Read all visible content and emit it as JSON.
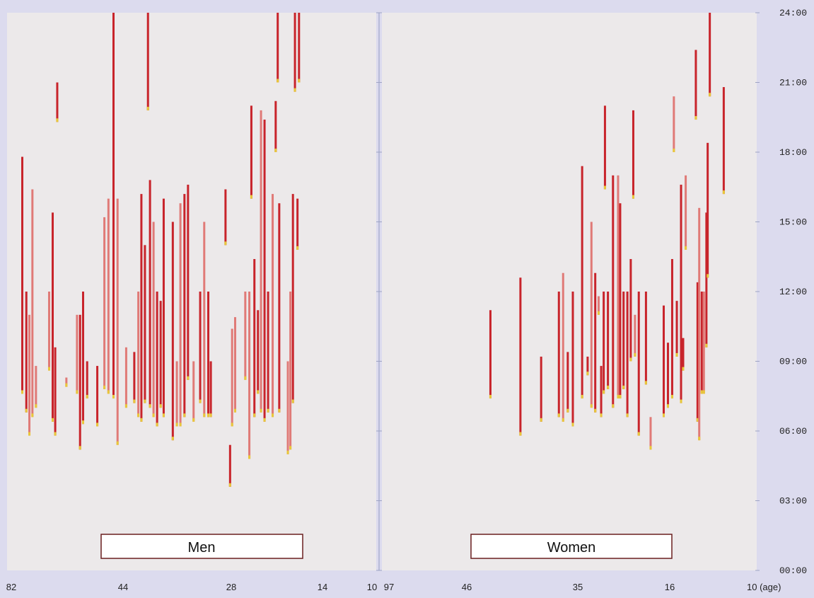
{
  "chart_data": [
    {
      "type": "bar",
      "panel": "Men",
      "label": "Men",
      "x_ticks": [
        "82",
        "44",
        "28",
        "14",
        "10"
      ],
      "x_axis_ages_reversed": true,
      "ylim": [
        "00:00",
        "24:00"
      ],
      "y_ticks": [
        "00:00",
        "03:00",
        "06:00",
        "09:00",
        "12:00",
        "15:00",
        "18:00",
        "21:00",
        "24:00"
      ],
      "grid": false,
      "series": [
        {
          "age": 79.0,
          "start": 7.6,
          "end": 17.8,
          "tone": "dark"
        },
        {
          "age": 78.2,
          "start": 6.8,
          "end": 12.0,
          "tone": "dark"
        },
        {
          "age": 77.6,
          "start": 5.8,
          "end": 11.0,
          "tone": "light"
        },
        {
          "age": 77.0,
          "start": 6.6,
          "end": 16.4,
          "tone": "light"
        },
        {
          "age": 76.3,
          "start": 7.0,
          "end": 8.8,
          "tone": "light"
        },
        {
          "age": 73.7,
          "start": 8.6,
          "end": 12.0,
          "tone": "light"
        },
        {
          "age": 73.0,
          "start": 6.4,
          "end": 15.4,
          "tone": "dark"
        },
        {
          "age": 72.5,
          "start": 5.8,
          "end": 9.6,
          "tone": "dark"
        },
        {
          "age": 72.1,
          "start": 19.3,
          "end": 21.0,
          "tone": "dark"
        },
        {
          "age": 70.3,
          "start": 7.9,
          "end": 8.3,
          "tone": "light"
        },
        {
          "age": 68.2,
          "start": 7.6,
          "end": 11.0,
          "tone": "light"
        },
        {
          "age": 67.6,
          "start": 5.2,
          "end": 11.0,
          "tone": "dark"
        },
        {
          "age": 67.0,
          "start": 6.3,
          "end": 12.0,
          "tone": "dark"
        },
        {
          "age": 66.2,
          "start": 7.4,
          "end": 9.0,
          "tone": "dark"
        },
        {
          "age": 64.2,
          "start": 6.2,
          "end": 8.8,
          "tone": "dark"
        },
        {
          "age": 62.8,
          "start": 7.8,
          "end": 15.2,
          "tone": "light"
        },
        {
          "age": 62.0,
          "start": 7.6,
          "end": 16.0,
          "tone": "light"
        },
        {
          "age": 61.0,
          "start": 7.4,
          "end": 24.0,
          "tone": "dark"
        },
        {
          "age": 60.2,
          "start": 5.4,
          "end": 16.0,
          "tone": "light"
        },
        {
          "age": 58.5,
          "start": 7.0,
          "end": 9.6,
          "tone": "light"
        },
        {
          "age": 56.9,
          "start": 7.2,
          "end": 9.4,
          "tone": "dark"
        },
        {
          "age": 56.1,
          "start": 6.6,
          "end": 12.0,
          "tone": "light"
        },
        {
          "age": 55.5,
          "start": 6.4,
          "end": 16.2,
          "tone": "dark"
        },
        {
          "age": 54.8,
          "start": 7.2,
          "end": 14.0,
          "tone": "dark"
        },
        {
          "age": 54.2,
          "start": 19.8,
          "end": 24.0,
          "tone": "dark"
        },
        {
          "age": 53.8,
          "start": 7.0,
          "end": 16.8,
          "tone": "dark"
        },
        {
          "age": 53.1,
          "start": 6.6,
          "end": 15.0,
          "tone": "light"
        },
        {
          "age": 52.4,
          "start": 6.2,
          "end": 12.0,
          "tone": "dark"
        },
        {
          "age": 51.7,
          "start": 7.0,
          "end": 11.6,
          "tone": "dark"
        },
        {
          "age": 51.1,
          "start": 6.6,
          "end": 16.0,
          "tone": "dark"
        },
        {
          "age": 49.3,
          "start": 5.6,
          "end": 15.0,
          "tone": "dark"
        },
        {
          "age": 48.5,
          "start": 6.2,
          "end": 9.0,
          "tone": "light"
        },
        {
          "age": 47.8,
          "start": 6.2,
          "end": 15.8,
          "tone": "light"
        },
        {
          "age": 47.0,
          "start": 6.6,
          "end": 16.2,
          "tone": "dark"
        },
        {
          "age": 46.3,
          "start": 8.2,
          "end": 16.6,
          "tone": "dark"
        },
        {
          "age": 45.2,
          "start": 6.4,
          "end": 9.0,
          "tone": "light"
        },
        {
          "age": 43.9,
          "start": 7.2,
          "end": 12.0,
          "tone": "dark"
        },
        {
          "age": 43.1,
          "start": 6.6,
          "end": 15.0,
          "tone": "light"
        },
        {
          "age": 42.3,
          "start": 6.6,
          "end": 12.0,
          "tone": "dark"
        },
        {
          "age": 41.8,
          "start": 6.6,
          "end": 9.0,
          "tone": "dark"
        },
        {
          "age": 38.0,
          "start": 3.6,
          "end": 5.4,
          "tone": "dark"
        },
        {
          "age": 37.6,
          "start": 6.2,
          "end": 10.4,
          "tone": "light"
        },
        {
          "age": 37.0,
          "start": 6.8,
          "end": 10.9,
          "tone": "light"
        },
        {
          "age": 38.9,
          "start": 14.0,
          "end": 16.4,
          "tone": "dark"
        },
        {
          "age": 35.0,
          "start": 8.2,
          "end": 12.0,
          "tone": "light"
        },
        {
          "age": 34.2,
          "start": 4.8,
          "end": 12.0,
          "tone": "light"
        },
        {
          "age": 33.8,
          "start": 16.0,
          "end": 20.0,
          "tone": "dark"
        },
        {
          "age": 33.2,
          "start": 6.6,
          "end": 13.4,
          "tone": "dark"
        },
        {
          "age": 32.5,
          "start": 7.6,
          "end": 11.2,
          "tone": "dark"
        },
        {
          "age": 31.9,
          "start": 6.8,
          "end": 19.8,
          "tone": "light"
        },
        {
          "age": 31.2,
          "start": 6.4,
          "end": 19.4,
          "tone": "dark"
        },
        {
          "age": 30.5,
          "start": 6.8,
          "end": 12.0,
          "tone": "dark"
        },
        {
          "age": 29.6,
          "start": 6.6,
          "end": 16.2,
          "tone": "light"
        },
        {
          "age": 29.0,
          "start": 18.0,
          "end": 20.2,
          "tone": "dark"
        },
        {
          "age": 28.6,
          "start": 21.0,
          "end": 24.0,
          "tone": "dark"
        },
        {
          "age": 28.3,
          "start": 6.8,
          "end": 15.8,
          "tone": "dark"
        },
        {
          "age": 26.6,
          "start": 5.0,
          "end": 9.0,
          "tone": "light"
        },
        {
          "age": 26.1,
          "start": 5.2,
          "end": 12.0,
          "tone": "light"
        },
        {
          "age": 25.6,
          "start": 7.2,
          "end": 16.2,
          "tone": "dark"
        },
        {
          "age": 25.2,
          "start": 20.6,
          "end": 24.0,
          "tone": "dark"
        },
        {
          "age": 24.7,
          "start": 13.8,
          "end": 16.0,
          "tone": "dark"
        },
        {
          "age": 24.4,
          "start": 21.0,
          "end": 24.0,
          "tone": "dark"
        }
      ]
    },
    {
      "type": "bar",
      "panel": "Women",
      "label": "Women",
      "x_ticks": [
        "97",
        "46",
        "35",
        "16",
        "10 (age)"
      ],
      "x_axis_ages_reversed": true,
      "ylim": [
        "00:00",
        "24:00"
      ],
      "y_ticks": [
        "00:00",
        "03:00",
        "06:00",
        "09:00",
        "12:00",
        "15:00",
        "18:00",
        "21:00",
        "24:00"
      ],
      "grid": false,
      "series": [
        {
          "age": 73.0,
          "start": 7.4,
          "end": 11.2,
          "tone": "dark"
        },
        {
          "age": 65.9,
          "start": 5.8,
          "end": 12.6,
          "tone": "dark"
        },
        {
          "age": 61.0,
          "start": 6.4,
          "end": 9.2,
          "tone": "dark"
        },
        {
          "age": 56.8,
          "start": 6.6,
          "end": 12.0,
          "tone": "dark"
        },
        {
          "age": 55.8,
          "start": 6.4,
          "end": 12.8,
          "tone": "light"
        },
        {
          "age": 54.7,
          "start": 6.8,
          "end": 9.4,
          "tone": "dark"
        },
        {
          "age": 53.5,
          "start": 6.2,
          "end": 12.0,
          "tone": "dark"
        },
        {
          "age": 51.3,
          "start": 7.4,
          "end": 17.4,
          "tone": "dark"
        },
        {
          "age": 50.0,
          "start": 8.4,
          "end": 9.2,
          "tone": "dark"
        },
        {
          "age": 49.1,
          "start": 7.0,
          "end": 15.0,
          "tone": "light"
        },
        {
          "age": 48.2,
          "start": 6.8,
          "end": 12.8,
          "tone": "dark"
        },
        {
          "age": 47.4,
          "start": 11.0,
          "end": 11.8,
          "tone": "light"
        },
        {
          "age": 46.8,
          "start": 6.6,
          "end": 8.8,
          "tone": "dark"
        },
        {
          "age": 46.2,
          "start": 7.6,
          "end": 12.0,
          "tone": "dark"
        },
        {
          "age": 45.9,
          "start": 16.4,
          "end": 20.0,
          "tone": "dark"
        },
        {
          "age": 45.2,
          "start": 7.8,
          "end": 12.0,
          "tone": "dark"
        },
        {
          "age": 44.0,
          "start": 7.0,
          "end": 17.0,
          "tone": "dark"
        },
        {
          "age": 42.8,
          "start": 7.4,
          "end": 17.0,
          "tone": "light"
        },
        {
          "age": 42.3,
          "start": 7.4,
          "end": 15.8,
          "tone": "dark"
        },
        {
          "age": 41.5,
          "start": 7.8,
          "end": 12.0,
          "tone": "dark"
        },
        {
          "age": 40.6,
          "start": 6.6,
          "end": 12.0,
          "tone": "dark"
        },
        {
          "age": 39.8,
          "start": 9.0,
          "end": 13.4,
          "tone": "dark"
        },
        {
          "age": 39.2,
          "start": 16.0,
          "end": 19.8,
          "tone": "dark"
        },
        {
          "age": 38.8,
          "start": 9.2,
          "end": 11.0,
          "tone": "light"
        },
        {
          "age": 37.9,
          "start": 5.8,
          "end": 12.0,
          "tone": "dark"
        },
        {
          "age": 36.2,
          "start": 8.0,
          "end": 12.0,
          "tone": "dark"
        },
        {
          "age": 35.1,
          "start": 5.2,
          "end": 6.6,
          "tone": "light"
        },
        {
          "age": 32.0,
          "start": 6.6,
          "end": 11.4,
          "tone": "dark"
        },
        {
          "age": 31.0,
          "start": 7.0,
          "end": 9.8,
          "tone": "dark"
        },
        {
          "age": 30.0,
          "start": 7.4,
          "end": 13.4,
          "tone": "dark"
        },
        {
          "age": 29.6,
          "start": 18.0,
          "end": 20.4,
          "tone": "light"
        },
        {
          "age": 28.9,
          "start": 9.2,
          "end": 11.6,
          "tone": "dark"
        },
        {
          "age": 27.9,
          "start": 7.2,
          "end": 16.6,
          "tone": "dark"
        },
        {
          "age": 27.4,
          "start": 8.6,
          "end": 10.0,
          "tone": "dark"
        },
        {
          "age": 26.8,
          "start": 13.8,
          "end": 17.0,
          "tone": "light"
        },
        {
          "age": 24.4,
          "start": 19.4,
          "end": 22.4,
          "tone": "dark"
        },
        {
          "age": 24.0,
          "start": 6.4,
          "end": 12.4,
          "tone": "dark"
        },
        {
          "age": 23.6,
          "start": 5.6,
          "end": 15.6,
          "tone": "light"
        },
        {
          "age": 23.0,
          "start": 7.6,
          "end": 12.0,
          "tone": "dark"
        },
        {
          "age": 22.5,
          "start": 7.6,
          "end": 12.0,
          "tone": "light"
        },
        {
          "age": 21.9,
          "start": 9.6,
          "end": 15.4,
          "tone": "dark"
        },
        {
          "age": 21.6,
          "start": 12.6,
          "end": 18.4,
          "tone": "dark"
        },
        {
          "age": 21.1,
          "start": 20.4,
          "end": 24.0,
          "tone": "dark"
        },
        {
          "age": 17.8,
          "start": 16.2,
          "end": 20.8,
          "tone": "dark"
        }
      ]
    }
  ],
  "colors": {
    "dark_bar": "#c8242b",
    "light_bar": "#e07a77",
    "cap": "#e8c83a",
    "panel": "#ece9ea",
    "frame": "#dcdbee"
  }
}
